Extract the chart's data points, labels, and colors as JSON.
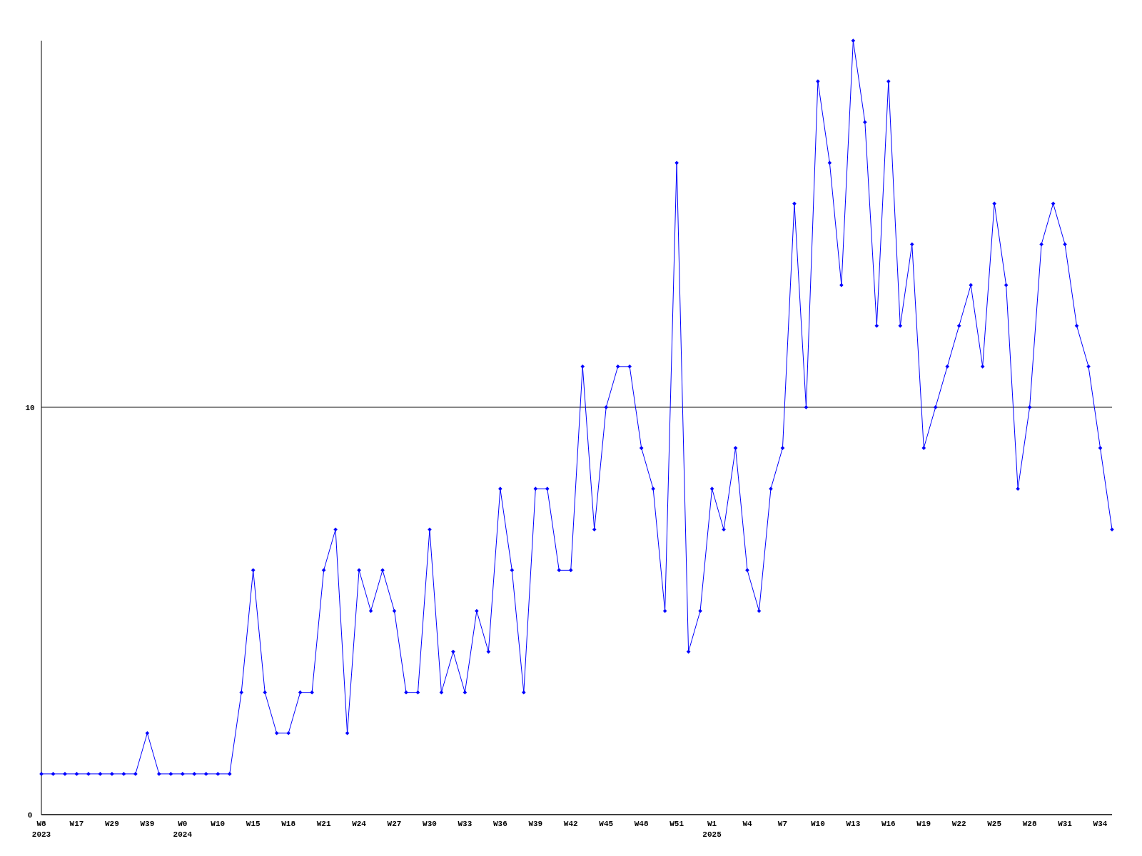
{
  "chart_data": {
    "type": "line",
    "categories": [
      "W8\n2023",
      null,
      null,
      "W17",
      null,
      null,
      "W29",
      null,
      null,
      "W39",
      null,
      null,
      "W0\n2024",
      null,
      null,
      "W10",
      null,
      null,
      "W15",
      null,
      null,
      "W18",
      null,
      null,
      "W21",
      null,
      null,
      "W24",
      null,
      null,
      "W27",
      null,
      null,
      "W30",
      null,
      null,
      "W33",
      null,
      null,
      "W36",
      null,
      null,
      "W39",
      null,
      null,
      "W42",
      null,
      null,
      "W45",
      null,
      null,
      "W48",
      null,
      null,
      "W51",
      null,
      null,
      "W1\n2025",
      null,
      null,
      "W4",
      null,
      null,
      "W7",
      null,
      null,
      "W10",
      null,
      null,
      "W13",
      null,
      null,
      "W16",
      null,
      null,
      "W19",
      null,
      null,
      "W22",
      null,
      null,
      "W25",
      null,
      null,
      "W28",
      null,
      null,
      "W31",
      null,
      null,
      "W34",
      null
    ],
    "series": [
      {
        "color": "#0000ff",
        "values": [
          1,
          1,
          1,
          1,
          1,
          1,
          1,
          1,
          1,
          2,
          1,
          1,
          1,
          1,
          1,
          1,
          1,
          3,
          6,
          3,
          2,
          2,
          3,
          3,
          6,
          7,
          2,
          6,
          5,
          6,
          5,
          3,
          3,
          7,
          3,
          4,
          3,
          5,
          4,
          8,
          6,
          3,
          8,
          8,
          6,
          6,
          11,
          7,
          10,
          11,
          11,
          9,
          8,
          5,
          16,
          4,
          5,
          8,
          7,
          9,
          6,
          5,
          8,
          9,
          15,
          10,
          18,
          16,
          13,
          19,
          17,
          12,
          18,
          12,
          14,
          9,
          10,
          11,
          12,
          13,
          11,
          15,
          13,
          8,
          10,
          14,
          15,
          14,
          12,
          11,
          9,
          7
        ]
      }
    ],
    "ylim": [
      0,
      19
    ],
    "yticks": [
      0,
      10
    ],
    "grid": "y",
    "marker": "diamond",
    "line_style": "solid"
  }
}
